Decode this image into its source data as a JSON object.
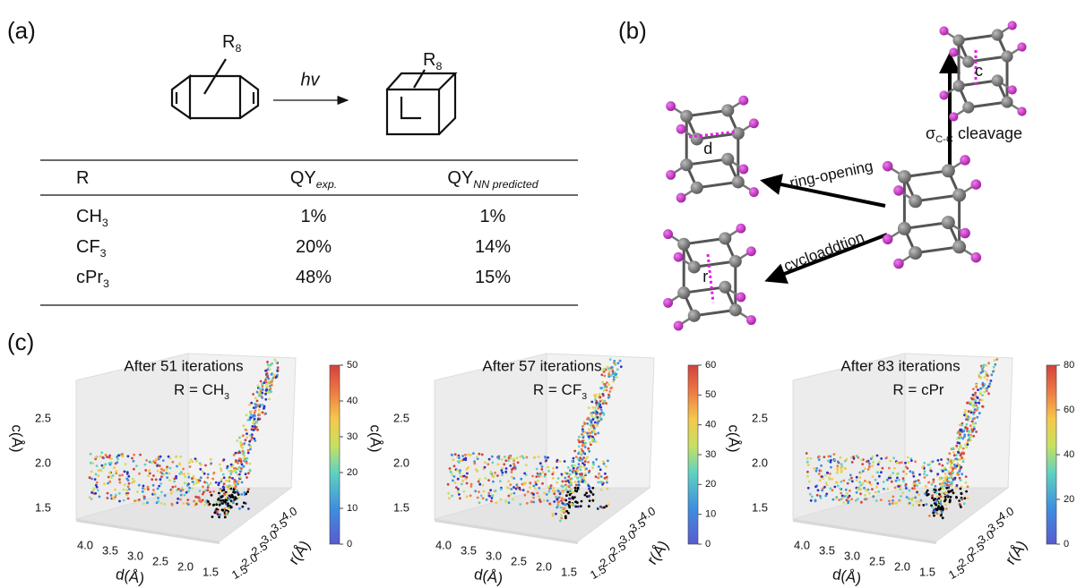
{
  "panel_a": {
    "label": "(a)",
    "scheme": {
      "reactant_substituent": {
        "base": "R",
        "sub": "8"
      },
      "arrow_label": "hv",
      "product_substituent": {
        "base": "R",
        "sub": "8"
      }
    },
    "table": {
      "header": [
        {
          "base": "R"
        },
        {
          "base": "QY",
          "sub": "exp."
        },
        {
          "base": "QY",
          "sub": "NN predicted"
        }
      ],
      "rows": [
        [
          {
            "base": "CH",
            "sub": "3"
          },
          {
            "base": "1%"
          },
          {
            "base": "1%"
          }
        ],
        [
          {
            "base": "CF",
            "sub": "3"
          },
          {
            "base": "20%"
          },
          {
            "base": "14%"
          }
        ],
        [
          {
            "base": "cPr",
            "sub": "3"
          },
          {
            "base": "48%"
          },
          {
            "base": "15%"
          }
        ]
      ]
    }
  },
  "panel_b": {
    "label": "(b)",
    "distance_c": "c",
    "distance_d": "d",
    "distance_r": "r",
    "ring_opening": "ring-opening",
    "cycloaddition": "cycloaddtion",
    "cleavage": {
      "base": "σ",
      "sub": "C-C",
      "rest": " cleavage"
    }
  },
  "panel_c": {
    "label": "(c)",
    "axis_labels": {
      "c": "c(Å)",
      "d": "d(Å)",
      "r": "r(Å)"
    },
    "c_ticks": [
      "1.5",
      "2.0",
      "2.5"
    ],
    "d_ticks": [
      "4.0",
      "3.5",
      "3.0",
      "2.5",
      "2.0",
      "1.5"
    ],
    "r_ticks": [
      "1.5",
      "2.0",
      "2.5",
      "3.0",
      "3.5",
      "4.0"
    ],
    "plots": [
      {
        "title": "After 51 iterations",
        "subtitle": {
          "base": "R = CH",
          "sub": "3"
        },
        "colorbar_ticks": [
          "0",
          "10",
          "20",
          "30",
          "40",
          "50"
        ]
      },
      {
        "title": "After 57 iterations",
        "subtitle": {
          "base": "R = CF",
          "sub": "3"
        },
        "colorbar_ticks": [
          "0",
          "10",
          "20",
          "30",
          "40",
          "50",
          "60"
        ]
      },
      {
        "title": "After 83 iterations",
        "subtitle": {
          "base": "R = cPr"
        },
        "colorbar_ticks": [
          "0",
          "20",
          "40",
          "60",
          "80"
        ]
      }
    ]
  }
}
